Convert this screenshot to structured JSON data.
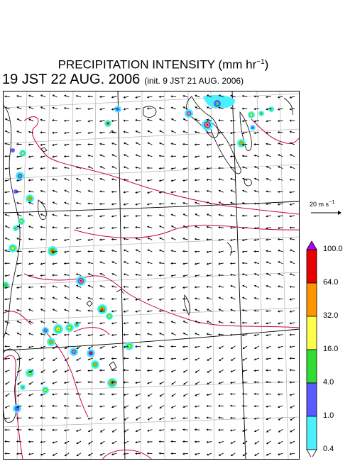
{
  "title": {
    "main": "PRECIPITATION INTENSITY (mm hr",
    "exponent": "−1",
    "close": ")"
  },
  "valid_time": "19 JST 22 AUG. 2006",
  "init_time": "(init. 9 JST 21 AUG. 2006)",
  "wind_reference": {
    "label": "20 m s",
    "exponent": "−1"
  },
  "colorbar": {
    "labels": [
      "100.0",
      "64.0",
      "32.0",
      "16.0",
      "4.0",
      "1.0",
      "0.4"
    ],
    "colors": [
      "#b400ff",
      "#e60000",
      "#ff9600",
      "#ffff4b",
      "#32dc32",
      "#5a5aff",
      "#4bf0ff"
    ]
  },
  "map_colors": {
    "coast": "#000000",
    "grid": "#b4b4b4",
    "contour": "#c8004b",
    "wind_arrows": "#000000"
  },
  "wind_field": {
    "prevailing_direction": "westward (easterly flow)"
  }
}
